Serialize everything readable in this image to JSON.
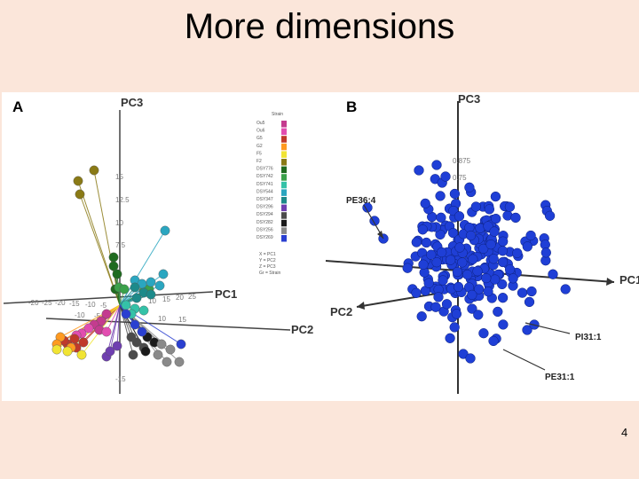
{
  "slide": {
    "title": "More dimensions",
    "page_number": "4"
  },
  "panel_a": {
    "label": "A",
    "axes": {
      "x": "PC1",
      "y": "PC2",
      "z": "PC3"
    },
    "ticks_z": [
      "15",
      "12.5",
      "10",
      "7.5"
    ],
    "ticks_x_left": [
      "-20",
      "-25",
      "-20",
      "-15",
      "-10",
      "-5"
    ],
    "ticks_x_right": [
      "10",
      "15",
      "20",
      "25"
    ],
    "ticks_y": [
      "-10",
      "-5",
      "10",
      "15"
    ],
    "tick_low": "-15",
    "legend_title": "Strain",
    "legend_entries": [
      {
        "name": "Ou5",
        "color": "#c43b8f"
      },
      {
        "name": "Ou6",
        "color": "#e24db0"
      },
      {
        "name": "G5",
        "color": "#c0392b"
      },
      {
        "name": "G2",
        "color": "#ff9a20"
      },
      {
        "name": "F5",
        "color": "#f1e433"
      },
      {
        "name": "F2",
        "color": "#8a7a16"
      },
      {
        "name": "DSY776",
        "color": "#1f6b1f"
      },
      {
        "name": "DSY742",
        "color": "#3aa14a"
      },
      {
        "name": "DSY741",
        "color": "#34c2a8"
      },
      {
        "name": "DSY544",
        "color": "#2aa6c0"
      },
      {
        "name": "DSY347",
        "color": "#1d8a8a"
      },
      {
        "name": "DSY296",
        "color": "#6f3fb0"
      },
      {
        "name": "DSY294",
        "color": "#4b4b4b"
      },
      {
        "name": "DSY282",
        "color": "#1b1b1b"
      },
      {
        "name": "DSY256",
        "color": "#8a8a8a"
      },
      {
        "name": "DSY269",
        "color": "#2a3fd0"
      }
    ],
    "mapping": [
      "X = PC1",
      "Y = PC2",
      "Z = PC3",
      "Gr = Strain"
    ]
  },
  "panel_b": {
    "label": "B",
    "axes": {
      "x": "PC1",
      "y": "PC2",
      "z": "PC3"
    },
    "ticks_z": [
      "0.875",
      "0.75"
    ],
    "callouts": [
      "PE36:4",
      "PI31:1",
      "PE31:1"
    ],
    "point_color": "#1f3fd6"
  }
}
